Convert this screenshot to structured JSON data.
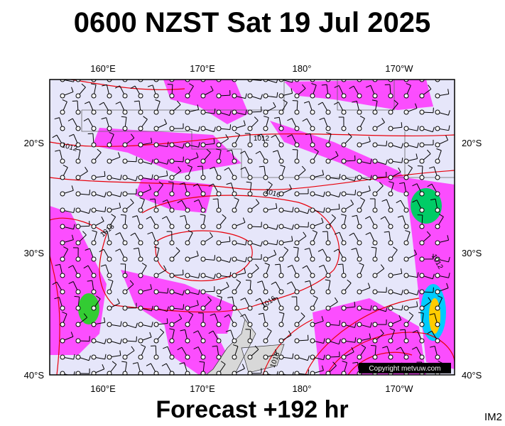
{
  "title": "0600 NZST Sat 19 Jul 2025",
  "map": {
    "lon_labels_top": [
      "160°E",
      "170°E",
      "180°",
      "170°W"
    ],
    "lon_labels_bottom": [
      "160°E",
      "170°E",
      "180°",
      "170°W"
    ],
    "lat_labels_left": [
      "20°S",
      "30°S",
      "40°S"
    ],
    "lat_labels_right": [
      "20°S",
      "30°S",
      "40°S"
    ],
    "isobar_labels": [
      "1012",
      "1012",
      "1016",
      "1016",
      "1016",
      "1016",
      "1012"
    ],
    "copyright": "Copyright metvuw.com"
  },
  "footer": {
    "forecast": "Forecast +192 hr",
    "code": "IM2"
  }
}
